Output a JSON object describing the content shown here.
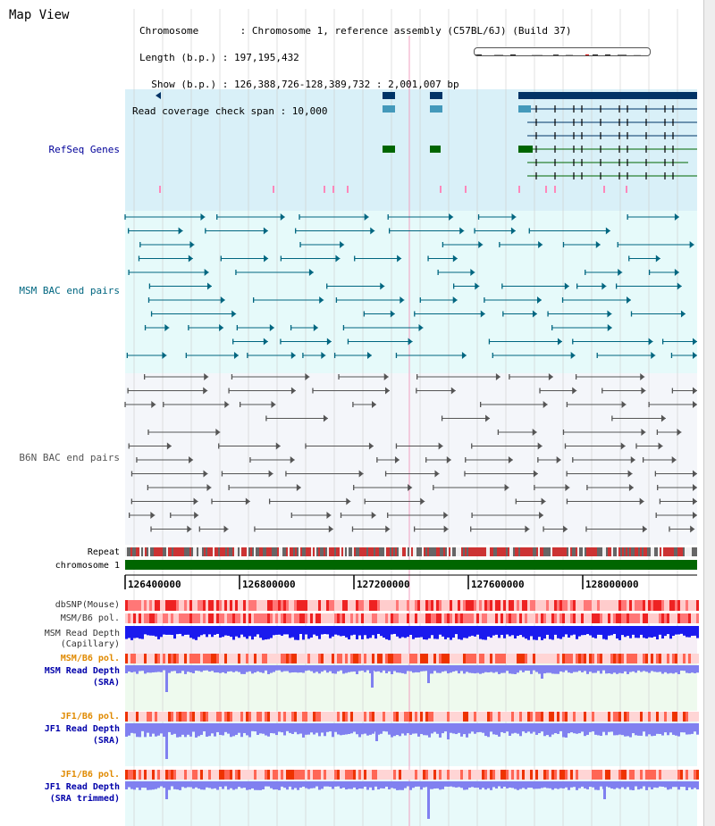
{
  "view_title": "Map View",
  "info": {
    "line1": "Chromosome       : Chromosome 1, reference assembly (C57BL/6J) (Build 37)",
    "line2": "Length (b.p.) : 197,195,432",
    "line3": "  Show (b.p.) : 126,388,726-128,389,732 : 2,001,007 bp",
    "line4": "Read coverage check span : 10,000"
  },
  "tracks": {
    "refseq": "RefSeq Genes",
    "msm_bac": "MSM BAC end pairs",
    "b6n_bac": "B6N BAC end pairs",
    "repeat": "Repeat",
    "chromosome": "chromosome 1",
    "dbsnp": "dbSNP(Mouse)",
    "msm_b6_pol_1": "MSM/B6 pol.",
    "msm_depth_cap_1": "MSM Read Depth",
    "msm_depth_cap_2": "(Capillary)",
    "msm_b6_pol_2": "MSM/B6 pol.",
    "msm_depth_sra_1": "MSM Read Depth",
    "msm_depth_sra_2": "(SRA)",
    "jf1_b6_pol_1": "JF1/B6 pol.",
    "jf1_depth_sra_1": "JF1 Read Depth",
    "jf1_depth_sra_2": "(SRA)",
    "jf1_b6_pol_2": "JF1/B6 pol.",
    "jf1_depth_trim_1": "JF1 Read Depth",
    "jf1_depth_trim_2": "(SRA trimmed)"
  },
  "ruler": {
    "ticks": [
      "126400000",
      "126800000",
      "127200000",
      "127600000",
      "128000000"
    ]
  },
  "colors": {
    "refseq_bg": "#d9f0f8",
    "msm_bg": "#e6fafa",
    "b6n_bg": "#f4f6fa",
    "chromosome_bar": "#006600",
    "gene_dark": "#003366",
    "gene_mid": "#4499bb",
    "gene_green": "#006600",
    "msm_line": "#006680",
    "b6n_line": "#555555",
    "depth_blue": "#1a1aee",
    "depth_light": "#8080f0"
  }
}
